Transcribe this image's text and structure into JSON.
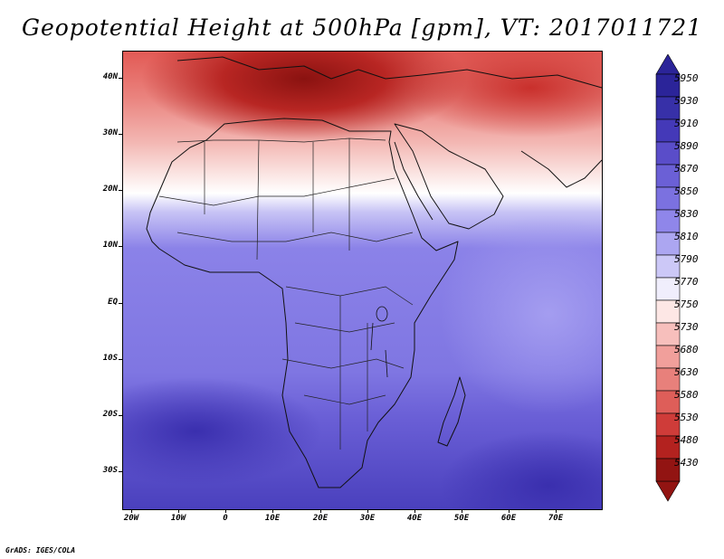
{
  "title": "Geopotential Height at 500hPa [gpm], VT: 2017011721",
  "map": {
    "region": "Africa",
    "variable": "Geopotential Height at 500hPa",
    "units": "gpm",
    "valid_time": "2017011721",
    "lat_labels": [
      "40N",
      "30N",
      "20N",
      "10N",
      "EQ",
      "10S",
      "20S",
      "30S"
    ],
    "lon_labels": [
      "20W",
      "10W",
      "0",
      "10E",
      "20E",
      "30E",
      "40E",
      "50E",
      "60E",
      "70E"
    ]
  },
  "legend": {
    "levels": [
      "5950",
      "5930",
      "5910",
      "5890",
      "5870",
      "5850",
      "5830",
      "5810",
      "5790",
      "5770",
      "5750",
      "5730",
      "5680",
      "5630",
      "5580",
      "5530",
      "5480",
      "5430"
    ],
    "colors": [
      "#2b2499",
      "#3730a8",
      "#4439b8",
      "#5a4dc9",
      "#6b60d6",
      "#7b71e0",
      "#8f86ea",
      "#aca6f1",
      "#ccc8f7",
      "#f0eefc",
      "#fde7e5",
      "#f7bfbc",
      "#f19f9b",
      "#e8807b",
      "#de5e59",
      "#cf3c39",
      "#b3221f",
      "#921412"
    ]
  },
  "credit": "GrADS: IGES/COLA"
}
